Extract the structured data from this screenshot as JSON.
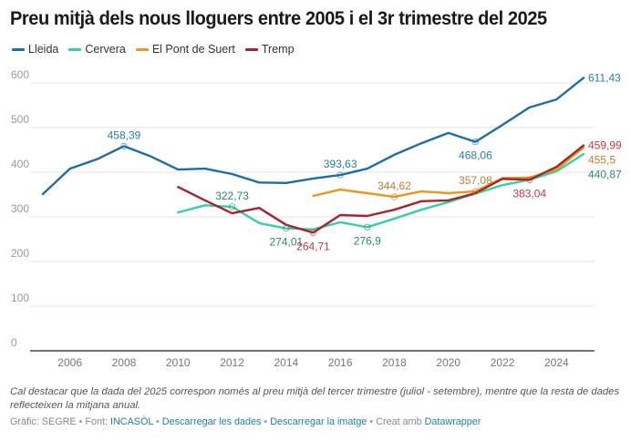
{
  "title": "Preu mitjà dels nous lloguers entre 2005 i el 3r trimestre del 2025",
  "note": "Cal destacar que la dada del 2025 correspon només al preu mitjà del tercer trimestre (juliol - setembre), mentre que la resta de dades reflecteixen la mitjana anual.",
  "footer": {
    "graphic_label": "Gràfic: SEGRE",
    "source_prefix": "Font:",
    "source_link": "INCASÒL",
    "download_data": "Descarregar les dades",
    "download_image": "Descarregar la imatge",
    "created_prefix": "Creat amb",
    "created_link": "Datawrapper",
    "separator": "•"
  },
  "chart_data": {
    "type": "line",
    "title": "Preu mitjà dels nous lloguers entre 2005 i el 3r trimestre del 2025",
    "xlabel": "",
    "ylabel": "",
    "xlim": [
      2005,
      2025
    ],
    "ylim": [
      0,
      600
    ],
    "yticks": [
      0,
      100,
      200,
      300,
      400,
      500,
      600
    ],
    "xticks": [
      2006,
      2008,
      2010,
      2012,
      2014,
      2016,
      2018,
      2020,
      2022,
      2024
    ],
    "grid": true,
    "legend_position": "top-left",
    "series": [
      {
        "name": "Lleida",
        "color": "#1d6ea6",
        "label_color": "#2b7bb3",
        "x": [
          2005,
          2006,
          2007,
          2008,
          2009,
          2010,
          2011,
          2012,
          2013,
          2014,
          2015,
          2016,
          2017,
          2018,
          2019,
          2020,
          2021,
          2022,
          2023,
          2024,
          2025
        ],
        "values": [
          351,
          408,
          429,
          458.39,
          435,
          406,
          408,
          396,
          377,
          376,
          386,
          393.63,
          408,
          439,
          465,
          488,
          468.06,
          506,
          545,
          563,
          611.43
        ],
        "annotations": [
          {
            "x": 2008,
            "value": 458.39,
            "text": "458,39",
            "pos": "above",
            "marker": true
          },
          {
            "x": 2016,
            "value": 393.63,
            "text": "393,63",
            "pos": "above",
            "marker": true
          },
          {
            "x": 2021,
            "value": 468.06,
            "text": "468,06",
            "pos": "below",
            "marker": true
          },
          {
            "x": 2025,
            "value": 611.43,
            "text": "611,43",
            "pos": "right",
            "marker": false
          }
        ]
      },
      {
        "name": "Cervera",
        "color": "#35d0a4",
        "label_color": "#2b8a6a",
        "x": [
          2010,
          2011,
          2012,
          2013,
          2014,
          2015,
          2016,
          2017,
          2018,
          2019,
          2020,
          2021,
          2022,
          2023,
          2024,
          2025
        ],
        "values": [
          310,
          326,
          322.73,
          286,
          274.01,
          272,
          288,
          276.9,
          296,
          316,
          333,
          352,
          371,
          383,
          402,
          440.87
        ],
        "annotations": [
          {
            "x": 2012,
            "value": 322.73,
            "text": "322,73",
            "pos": "above",
            "marker": true
          },
          {
            "x": 2014,
            "value": 274.01,
            "text": "274,01",
            "pos": "below",
            "marker": true
          },
          {
            "x": 2017,
            "value": 276.9,
            "text": "276,9",
            "pos": "below",
            "marker": true
          },
          {
            "x": 2025,
            "value": 440.87,
            "text": "440,87",
            "pos": "right",
            "marker": false
          }
        ]
      },
      {
        "name": "El Pont de Suert",
        "color": "#ea9620",
        "label_color": "#c97a2c",
        "x": [
          2015,
          2016,
          2017,
          2018,
          2019,
          2020,
          2021,
          2022,
          2023,
          2024,
          2025
        ],
        "values": [
          347,
          361,
          353,
          344.62,
          357,
          353,
          357.08,
          387,
          388,
          406,
          455.5
        ],
        "annotations": [
          {
            "x": 2018,
            "value": 344.62,
            "text": "344,62",
            "pos": "above",
            "marker": true
          },
          {
            "x": 2021,
            "value": 357.08,
            "text": "357,08",
            "pos": "above",
            "marker": true
          },
          {
            "x": 2025,
            "value": 455.5,
            "text": "455,5",
            "pos": "right",
            "marker": false
          }
        ]
      },
      {
        "name": "Tremp",
        "color": "#a8232b",
        "label_color": "#c23a44",
        "x": [
          2010,
          2011,
          2012,
          2013,
          2014,
          2015,
          2016,
          2017,
          2018,
          2019,
          2020,
          2021,
          2022,
          2023,
          2024,
          2025
        ],
        "values": [
          367,
          337,
          308,
          320,
          282,
          264.71,
          304,
          302,
          316,
          335,
          337,
          353,
          385,
          383.04,
          412,
          459.99
        ],
        "annotations": [
          {
            "x": 2015,
            "value": 264.71,
            "text": "264,71",
            "pos": "below",
            "marker": true
          },
          {
            "x": 2023,
            "value": 383.04,
            "text": "383,04",
            "pos": "below",
            "marker": true
          },
          {
            "x": 2025,
            "value": 459.99,
            "text": "459,99",
            "pos": "right",
            "marker": false
          }
        ]
      }
    ]
  }
}
